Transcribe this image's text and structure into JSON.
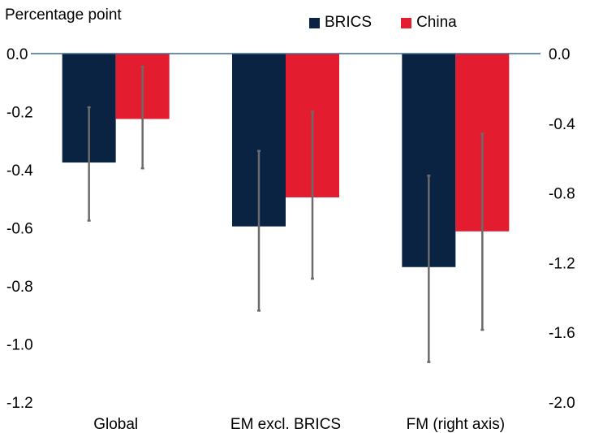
{
  "chart_data": {
    "type": "bar",
    "unit_label": "Percentage point",
    "categories": [
      "Global",
      "EM excl. BRICS",
      "FM (right axis)"
    ],
    "series": [
      {
        "name": "BRICS",
        "color": "#0b2343",
        "values": [
          -0.375,
          -0.595,
          -1.225
        ],
        "error_low": [
          -0.575,
          -0.885,
          -1.77
        ],
        "error_high": [
          -0.185,
          -0.335,
          -0.7
        ]
      },
      {
        "name": "China",
        "color": "#e31c2f",
        "values": [
          -0.225,
          -0.495,
          -1.02
        ],
        "error_low": [
          -0.395,
          -0.775,
          -1.585
        ],
        "error_high": [
          -0.045,
          -0.2,
          -0.46
        ]
      }
    ],
    "category_axis": [
      "left",
      "left",
      "right"
    ],
    "left_axis": {
      "min": -1.2,
      "max": 0,
      "step": 0.2,
      "tick_labels": [
        "0.0",
        "-0.2",
        "-0.4",
        "-0.6",
        "-0.8",
        "-1.0",
        "-1.2"
      ]
    },
    "right_axis": {
      "min": -2.0,
      "max": 0,
      "step": 0.4,
      "tick_labels": [
        "0.0",
        "-0.4",
        "-0.8",
        "-1.2",
        "-1.6",
        "-2.0"
      ]
    },
    "grid": false,
    "legend_position": "top-right"
  }
}
